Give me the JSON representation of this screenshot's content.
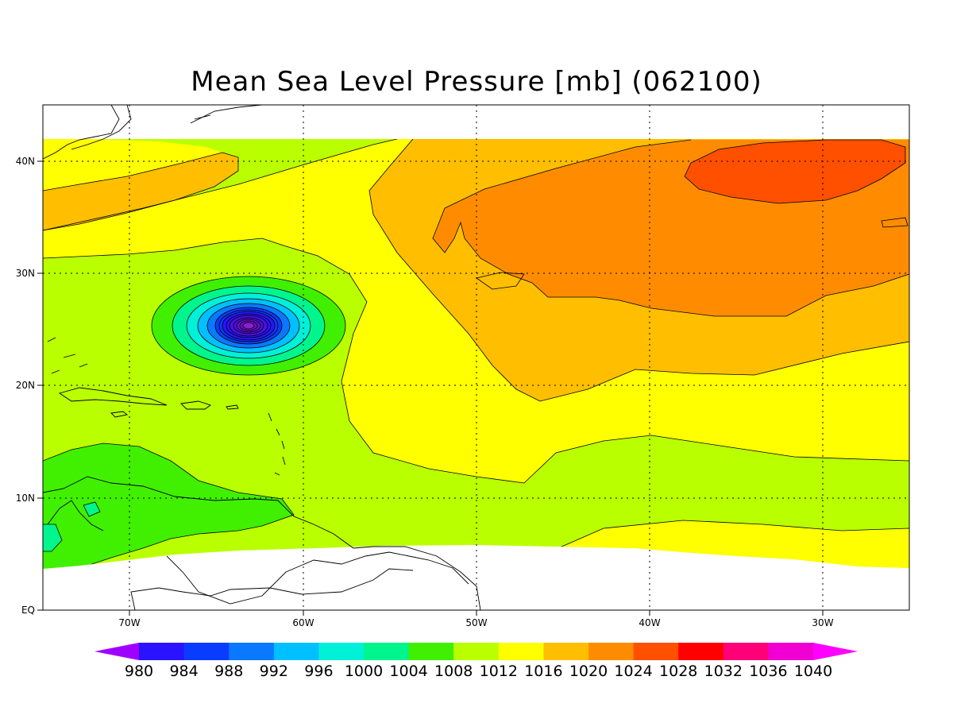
{
  "title": "Mean Sea Level Pressure [mb] (062100)",
  "lon_ticks": [
    "70W",
    "60W",
    "50W",
    "40W",
    "30W"
  ],
  "lat_ticks": [
    "EQ",
    "10N",
    "20N",
    "30N",
    "40N"
  ],
  "colorbar": {
    "labels": [
      "980",
      "984",
      "988",
      "992",
      "996",
      "1000",
      "1004",
      "1008",
      "1012",
      "1016",
      "1020",
      "1024",
      "1028",
      "1032",
      "1036",
      "1040"
    ],
    "colors": [
      "#a000ff",
      "#2a14ff",
      "#0a3cff",
      "#0a78ff",
      "#00c0ff",
      "#00f0d8",
      "#00f58c",
      "#40f000",
      "#baff00",
      "#ffff00",
      "#ffbe00",
      "#ff8c00",
      "#ff5000",
      "#ff0000",
      "#ff0078",
      "#f000d2",
      "#ff00ff"
    ]
  },
  "chart_data": {
    "type": "heatmap",
    "variable": "Mean Sea Level Pressure",
    "units": "mb",
    "time": "062100",
    "lon_range": [
      -75,
      -25
    ],
    "lat_range": [
      0,
      45
    ],
    "contour_interval": 4,
    "levels": [
      980,
      984,
      988,
      992,
      996,
      1000,
      1004,
      1008,
      1012,
      1016,
      1020,
      1024,
      1028,
      1032,
      1036,
      1040
    ],
    "features": [
      {
        "kind": "low",
        "lon": -63.5,
        "lat": 25.5,
        "min_value": 970
      },
      {
        "kind": "high",
        "lon": -33,
        "lat": 38.5,
        "max_value": 1028
      }
    ]
  }
}
